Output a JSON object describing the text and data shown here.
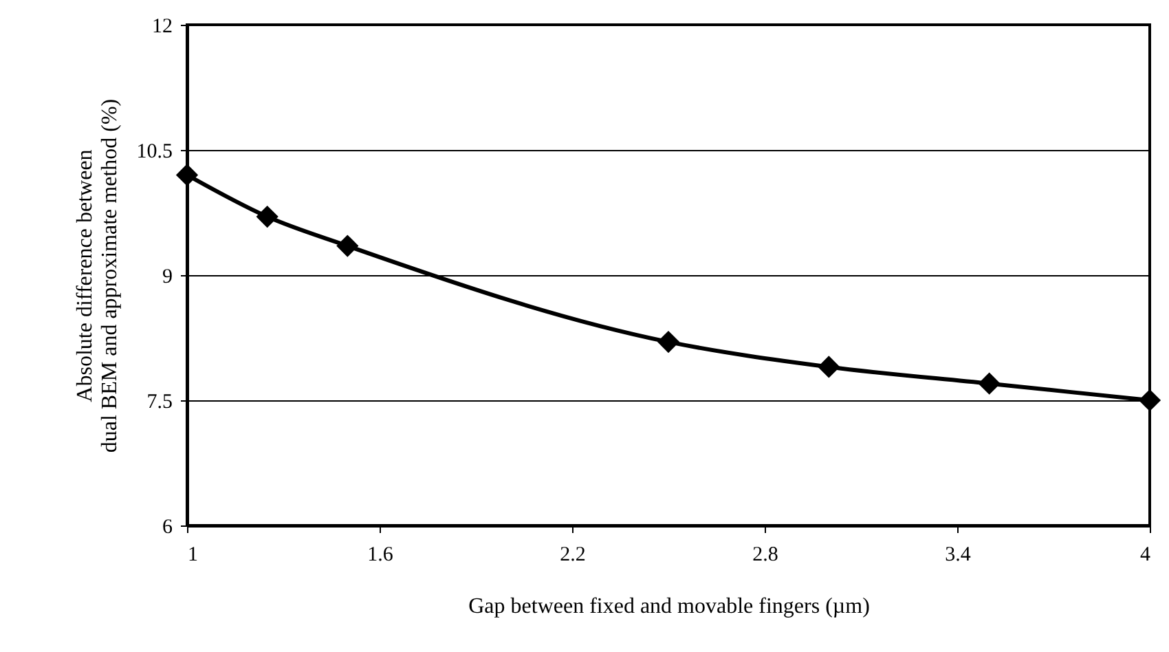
{
  "chart_data": {
    "type": "line",
    "xlabel": "Gap between fixed and movable fingers (µm)",
    "ylabel": "Absolute difference between dual BEM and approximate method (%)",
    "x": [
      1,
      1.25,
      1.5,
      2.5,
      3,
      3.5,
      4
    ],
    "series": [
      {
        "color": "#000000",
        "values": [
          10.2,
          9.7,
          9.35,
          8.2,
          7.9,
          7.7,
          7.5
        ]
      }
    ],
    "xlim": [
      1,
      4
    ],
    "xticks": [
      1,
      1.6,
      2.2,
      2.8,
      3.4,
      4
    ],
    "ylim": [
      6,
      12
    ],
    "yticks": [
      6,
      7.5,
      9,
      10.5,
      12
    ],
    "grid": "y",
    "marker": "diamond",
    "line_style": "solid"
  }
}
